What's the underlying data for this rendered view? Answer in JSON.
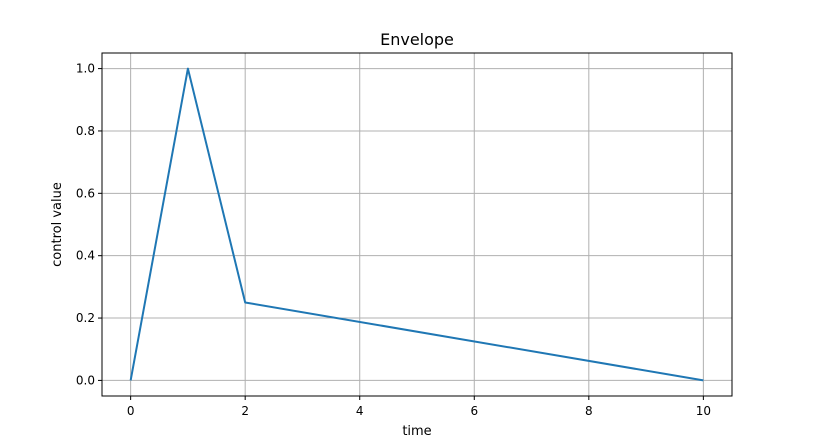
{
  "chart_data": {
    "type": "line",
    "title": "Envelope",
    "xlabel": "time",
    "ylabel": "control value",
    "xlim": [
      -0.5,
      10.5
    ],
    "ylim": [
      -0.05,
      1.05
    ],
    "xticks": [
      0,
      2,
      4,
      6,
      8,
      10
    ],
    "xtick_labels": [
      "0",
      "2",
      "4",
      "6",
      "8",
      "10"
    ],
    "yticks": [
      0.0,
      0.2,
      0.4,
      0.6,
      0.8,
      1.0
    ],
    "ytick_labels": [
      "0.0",
      "0.2",
      "0.4",
      "0.6",
      "0.8",
      "1.0"
    ],
    "grid": true,
    "series": [
      {
        "color": "#1f77b4",
        "x": [
          0,
          1,
          2,
          10
        ],
        "y": [
          0.0,
          1.0,
          0.25,
          0.0
        ]
      }
    ]
  }
}
